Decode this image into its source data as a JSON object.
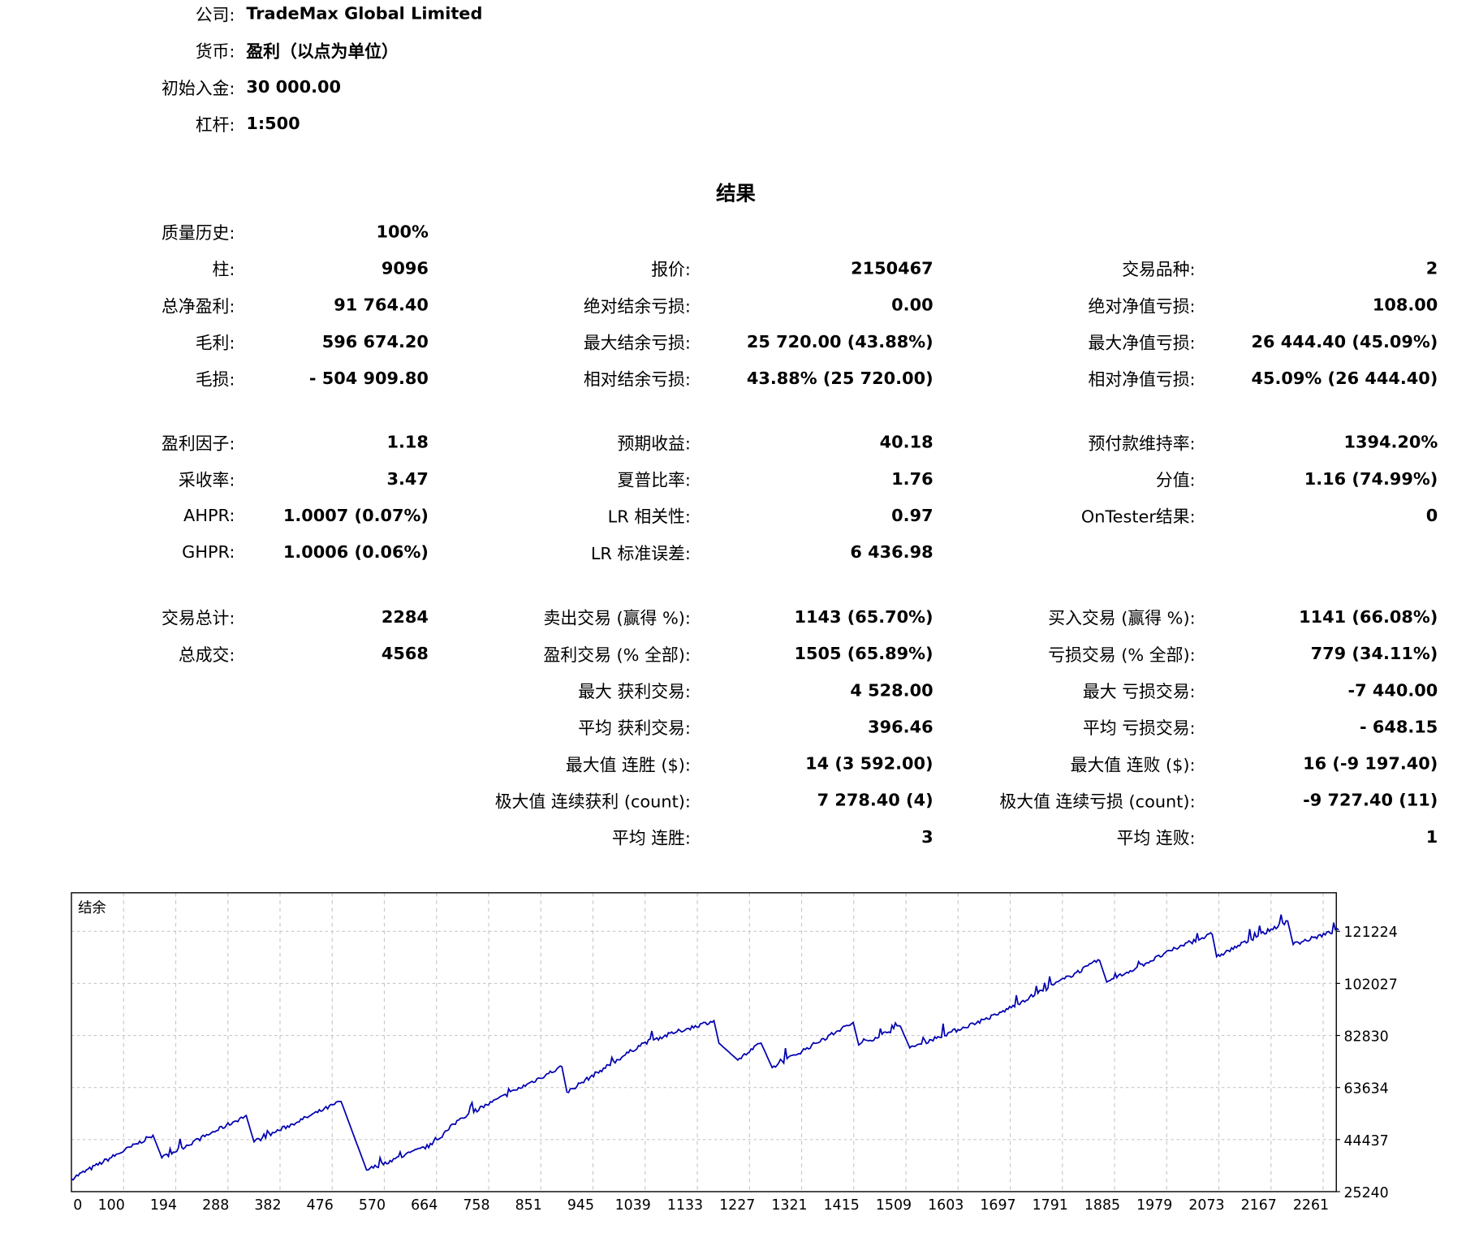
{
  "header": [
    {
      "label": "公司:",
      "value": "TradeMax Global Limited"
    },
    {
      "label": "货币:",
      "value": "盈利（以点为单位）"
    },
    {
      "label": "初始入金:",
      "value": "30 000.00"
    },
    {
      "label": "杠杆:",
      "value": "1:500"
    }
  ],
  "results_title": "结果",
  "rows": [
    [
      [
        "质量历史:",
        "100%"
      ],
      null,
      null
    ],
    [
      [
        "柱:",
        "9096"
      ],
      [
        "报价:",
        "2150467"
      ],
      [
        "交易品种:",
        "2"
      ]
    ],
    [
      [
        "总净盈利:",
        "91 764.40"
      ],
      [
        "绝对结余亏损:",
        "0.00"
      ],
      [
        "绝对净值亏损:",
        "108.00"
      ]
    ],
    [
      [
        "毛利:",
        "596 674.20"
      ],
      [
        "最大结余亏损:",
        "25 720.00 (43.88%)"
      ],
      [
        "最大净值亏损:",
        "26 444.40 (45.09%)"
      ]
    ],
    [
      [
        "毛损:",
        "- 504 909.80"
      ],
      [
        "相对结余亏损:",
        "43.88% (25 720.00)"
      ],
      [
        "相对净值亏损:",
        "45.09% (26 444.40)"
      ]
    ],
    [
      [
        "盈利因子:",
        "1.18"
      ],
      [
        "预期收益:",
        "40.18"
      ],
      [
        "预付款维持率:",
        "1394.20%"
      ]
    ],
    [
      [
        "采收率:",
        "3.47"
      ],
      [
        "夏普比率:",
        "1.76"
      ],
      [
        "分值:",
        "1.16 (74.99%)"
      ]
    ],
    [
      [
        "AHPR:",
        "1.0007 (0.07%)"
      ],
      [
        "LR 相关性:",
        "0.97"
      ],
      [
        "OnTester结果:",
        "0"
      ]
    ],
    [
      [
        "GHPR:",
        "1.0006 (0.06%)"
      ],
      [
        "LR 标准误差:",
        "6 436.98"
      ],
      null
    ],
    [
      [
        "交易总计:",
        "2284"
      ],
      [
        "卖出交易 (赢得 %):",
        "1143 (65.70%)"
      ],
      [
        "买入交易 (赢得 %):",
        "1141 (66.08%)"
      ]
    ],
    [
      [
        "总成交:",
        "4568"
      ],
      [
        "盈利交易 (% 全部):",
        "1505 (65.89%)"
      ],
      [
        "亏损交易 (% 全部):",
        "779 (34.11%)"
      ]
    ],
    [
      null,
      [
        "最大 获利交易:",
        "4 528.00"
      ],
      [
        "最大 亏损交易:",
        "-7 440.00"
      ]
    ],
    [
      null,
      [
        "平均 获利交易:",
        "396.46"
      ],
      [
        "平均 亏损交易:",
        "- 648.15"
      ]
    ],
    [
      null,
      [
        "最大值 连胜 ($):",
        "14 (3 592.00)"
      ],
      [
        "最大值 连败 ($):",
        "16 (-9 197.40)"
      ]
    ],
    [
      null,
      [
        "极大值 连续获利 (count):",
        "7 278.40 (4)"
      ],
      [
        "极大值 连续亏损 (count):",
        "-9 727.40 (11)"
      ]
    ],
    [
      null,
      [
        "平均 连胜:",
        "3"
      ],
      [
        "平均 连败:",
        "1"
      ]
    ]
  ],
  "chart_data": {
    "type": "line",
    "title": "结余",
    "line_color": "#0000b0",
    "grid": true,
    "x_ticks": [
      "0",
      "100",
      "194",
      "288",
      "382",
      "476",
      "570",
      "664",
      "758",
      "851",
      "945",
      "1039",
      "1133",
      "1227",
      "1321",
      "1415",
      "1509",
      "1603",
      "1697",
      "1791",
      "1885",
      "1979",
      "2073",
      "2167",
      "2261"
    ],
    "y_ticks": [
      "121224",
      "102027",
      "82830",
      "63634",
      "44437",
      "25240"
    ],
    "xlim": [
      0,
      2284
    ],
    "ylim": [
      25240,
      131000
    ],
    "series": [
      {
        "x": [
          0,
          147,
          163,
          315,
          329,
          486,
          532,
          650,
          701,
          884,
          893,
          1031,
          1091,
          1158,
          1167,
          1201,
          1243,
          1263,
          1409,
          1419,
          1494,
          1511,
          1667,
          1853,
          1866,
          2002,
          2056,
          2064,
          2192,
          2202,
          2284
        ],
        "y": [
          30000,
          46030,
          37715,
          53310,
          43610,
          58505,
          33210,
          42570,
          52270,
          71330,
          61970,
          79990,
          84150,
          88310,
          79990,
          73750,
          79990,
          70980,
          87610,
          79300,
          86230,
          78260,
          90390,
          110490,
          102520,
          116030,
          120190,
          111870,
          125040,
          116370,
          121764
        ]
      }
    ]
  }
}
